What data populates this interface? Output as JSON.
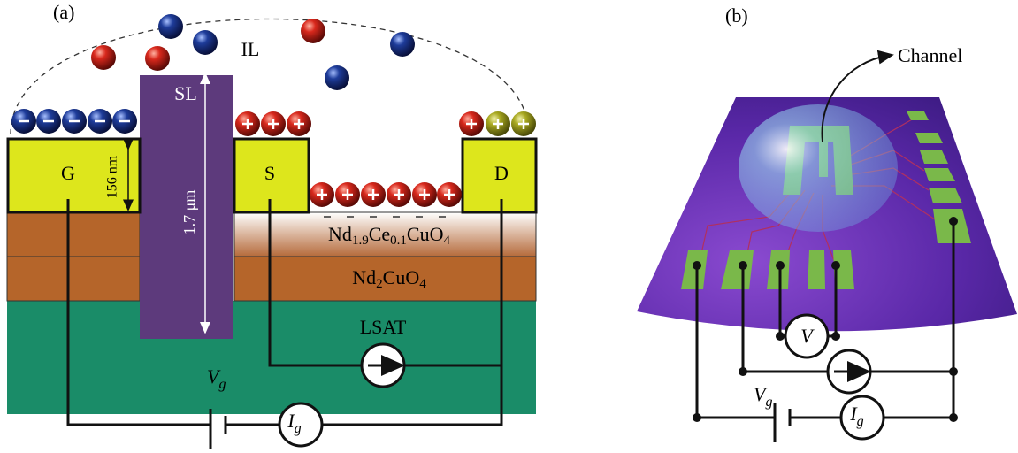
{
  "panel_a": {
    "label": "(a)",
    "il": "IL",
    "sl": "SL",
    "gate": "G",
    "source": "S",
    "drain": "D",
    "thickness": "156 nm",
    "depth": "1.7 μm",
    "ncco": {
      "parts": [
        "Nd",
        "1.9",
        "Ce",
        "0.1",
        "CuO",
        "4"
      ]
    },
    "nco": {
      "parts": [
        "Nd",
        "2",
        "CuO",
        "4"
      ]
    },
    "substrate": "LSAT",
    "vg": {
      "symbol": "V",
      "sub": "g"
    },
    "ig": {
      "symbol": "I",
      "sub": "g"
    }
  },
  "panel_b": {
    "label": "(b)",
    "channel": "Channel",
    "v": "V",
    "vg": {
      "symbol": "V",
      "sub": "g"
    },
    "ig": {
      "symbol": "I",
      "sub": "g"
    }
  }
}
